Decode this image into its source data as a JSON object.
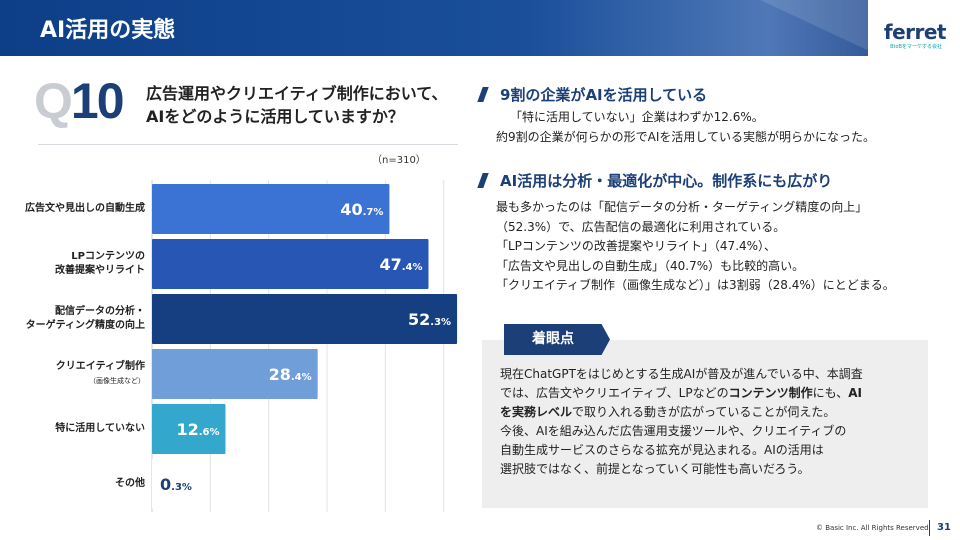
{
  "header": {
    "title": "AI活用の実態"
  },
  "logo": {
    "name": "ferret",
    "tagline": "BtoBをマーケする会社"
  },
  "question": {
    "q": "Q",
    "number": "10",
    "line1": "広告運用やクリエイティブ制作において、",
    "line2": "AIをどのように活用していますか？",
    "n_label": "（n=310）"
  },
  "chart_data": {
    "type": "bar",
    "orientation": "horizontal",
    "categories": [
      "広告文や見出しの自動生成",
      "LPコンテンツの改善提案やリライト",
      "配信データの分析・ターゲティング精度の向上",
      "クリエイティブ制作（画像生成など）",
      "特に活用していない",
      "その他"
    ],
    "category_lines": [
      [
        "広告文や見出しの自動生成"
      ],
      [
        "LPコンテンツの",
        "改善提案やリライト"
      ],
      [
        "配信データの分析・",
        "ターゲティング精度の向上"
      ],
      [
        "クリエイティブ制作",
        "（画像生成など）"
      ],
      [
        "特に活用していない"
      ],
      [
        "その他"
      ]
    ],
    "values": [
      40.7,
      47.4,
      52.3,
      28.4,
      12.6,
      0.3
    ],
    "label_int": [
      "40",
      "47",
      "52",
      "28",
      "12",
      "0"
    ],
    "label_dec": [
      ".7%",
      ".4%",
      ".3%",
      ".4%",
      ".6%",
      ".3%"
    ],
    "colors": [
      "#3b73d4",
      "#2856b4",
      "#163f82",
      "#6f9ed9",
      "#34a8cc",
      "#ffffff"
    ],
    "xlim": [
      0,
      60
    ],
    "grid": true
  },
  "sections": [
    {
      "heading": "9割の企業がAIを活用している",
      "lines": [
        "「特に活用していない」企業はわずか12.6%。",
        "約9割の企業が何らかの形でAIを活用している実態が明らかになった。"
      ]
    },
    {
      "heading": "AI活用は分析・最適化が中心。制作系にも広がり",
      "lines": [
        "最も多かったのは「配信データの分析・ターゲティング精度の向上」",
        "（52.3%）で、広告配信の最適化に利用されている。",
        "「LPコンテンツの改善提案やリライト」（47.4%）、",
        "「広告文や見出しの自動生成」（40.7%）も比較的高い。",
        "「クリエイティブ制作（画像生成など）」は3割弱（28.4%）にとどまる。"
      ]
    }
  ],
  "note": {
    "tag": "着眼点",
    "l1": "現在ChatGPTをはじめとする生成AIが普及が進んでいる中、本調査",
    "l2a": "では、広告文やクリエイティブ、LPなどの",
    "l2b": "コンテンツ制作",
    "l2c": "にも、",
    "l2d": "AI",
    "l3a": "を実務レベル",
    "l3b": "で取り入れる動きが広がっていることが伺えた。",
    "l4": "今後、AIを組み込んだ広告運用支援ツールや、クリエイティブの",
    "l5": "自動生成サービスのさらなる拡充が見込まれる。AIの活用は",
    "l6": "選択肢ではなく、前提となっていく可能性も高いだろう。"
  },
  "footer": {
    "copyright": "© Basic Inc. All Rights Reserved.",
    "page": "31"
  }
}
